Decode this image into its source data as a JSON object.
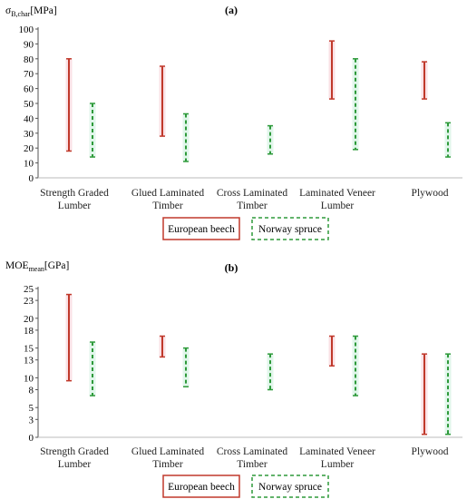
{
  "chart_data": [
    {
      "type": "range-bar",
      "panel_label": "(a)",
      "ylabel_main": "σ",
      "ylabel_sub": "B,char",
      "ylabel_unit": "[MPa]",
      "ylim": [
        0,
        100
      ],
      "yticks": [
        0,
        10,
        20,
        30,
        40,
        50,
        60,
        70,
        80,
        90,
        100
      ],
      "categories": [
        [
          "Strength Graded",
          "Lumber"
        ],
        [
          "Glued Laminated",
          "Timber"
        ],
        [
          "Cross Laminated",
          "Timber"
        ],
        [
          "Laminated Veneer",
          "Lumber"
        ],
        [
          "Plywood",
          ""
        ]
      ],
      "series": [
        {
          "name": "European beech",
          "color": "#c0392b",
          "style": "solid",
          "ranges": [
            [
              18,
              80
            ],
            [
              28,
              75
            ],
            null,
            [
              53,
              92
            ],
            [
              53,
              78
            ]
          ]
        },
        {
          "name": "Norway spruce",
          "color": "#2e9a3a",
          "style": "dashed",
          "ranges": [
            [
              14,
              50
            ],
            [
              11,
              43
            ],
            [
              16,
              35
            ],
            [
              19,
              80
            ],
            [
              14,
              37
            ]
          ]
        }
      ]
    },
    {
      "type": "range-bar",
      "panel_label": "(b)",
      "ylabel_main": "MOE",
      "ylabel_sub": "mean",
      "ylabel_unit": "[GPa]",
      "ylim": [
        0,
        25
      ],
      "yticks": [
        0,
        3,
        5,
        8,
        10,
        13,
        15,
        18,
        20,
        23,
        25
      ],
      "categories": [
        [
          "Strength Graded",
          "Lumber"
        ],
        [
          "Glued Laminated",
          "Timber"
        ],
        [
          "Cross Laminated",
          "Timber"
        ],
        [
          "Laminated Veneer",
          "Lumber"
        ],
        [
          "Plywood",
          ""
        ]
      ],
      "series": [
        {
          "name": "European beech",
          "color": "#c0392b",
          "style": "solid",
          "ranges": [
            [
              9.5,
              24
            ],
            [
              13.5,
              17
            ],
            null,
            [
              12,
              17
            ],
            [
              0.5,
              14
            ]
          ]
        },
        {
          "name": "Norway spruce",
          "color": "#2e9a3a",
          "style": "dashed",
          "ranges": [
            [
              7,
              16
            ],
            [
              8.5,
              15
            ],
            [
              8,
              14
            ],
            [
              7,
              17
            ],
            [
              0.5,
              14
            ]
          ]
        }
      ]
    }
  ],
  "legend": {
    "beech": "European beech",
    "spruce": "Norway spruce",
    "beech_color": "#c0392b",
    "spruce_color": "#2e9a3a"
  }
}
